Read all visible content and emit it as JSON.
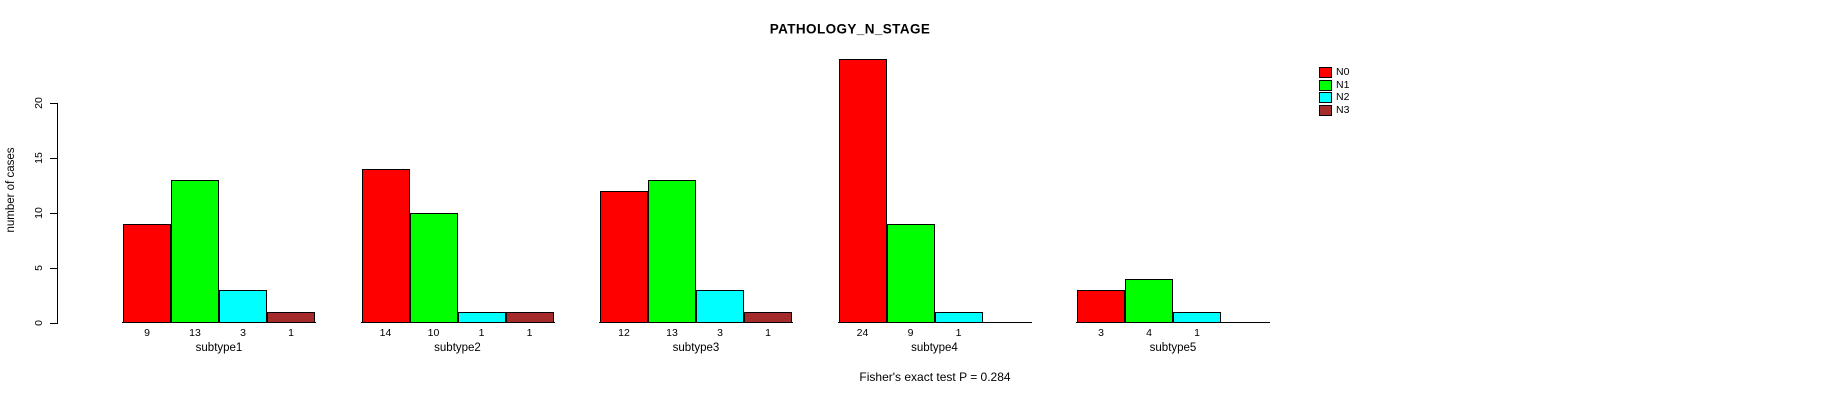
{
  "chart_data": {
    "type": "bar",
    "title": "PATHOLOGY_N_STAGE",
    "ylabel": "number of cases",
    "xlabel": "",
    "categories": [
      "subtype1",
      "subtype2",
      "subtype3",
      "subtype4",
      "subtype5"
    ],
    "series": [
      {
        "name": "N0",
        "color": "#ff0000",
        "values": [
          9,
          14,
          12,
          24,
          3
        ]
      },
      {
        "name": "N1",
        "color": "#00ff00",
        "values": [
          13,
          10,
          13,
          9,
          4
        ]
      },
      {
        "name": "N2",
        "color": "#00ffff",
        "values": [
          3,
          1,
          3,
          1,
          1
        ]
      },
      {
        "name": "N3",
        "color": "#a52a2a",
        "values": [
          1,
          1,
          1,
          0,
          0
        ]
      }
    ],
    "ylim": [
      0,
      20
    ],
    "yticks": [
      0,
      5,
      10,
      15,
      20
    ],
    "grid": false,
    "bar_value_labels_shown": true,
    "legend_position": "right",
    "annotation": "Fisher's exact test P = 0.284"
  }
}
